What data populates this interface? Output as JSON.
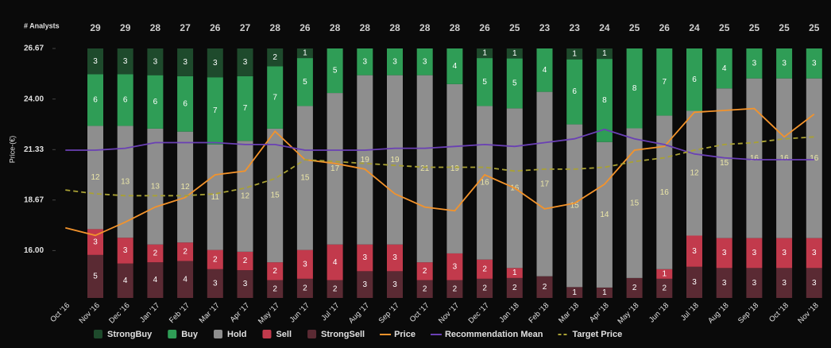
{
  "chart_data": {
    "type": "bar",
    "stack": "percent",
    "analysts_label": "# Analysts",
    "y_label": "Price-(€)",
    "categories": [
      "Oct '16",
      "Nov '16",
      "Dec '16",
      "Jan '17",
      "Feb '17",
      "Mar '17",
      "Apr '17",
      "May '17",
      "Jun '17",
      "Jul '17",
      "Aug '17",
      "Sep '17",
      "Oct '17",
      "Nov '17",
      "Dec '17",
      "Jan '18",
      "Feb '18",
      "Mar '18",
      "Apr '18",
      "May '18",
      "Jun '18",
      "Jul '18",
      "Aug '18",
      "Sep '18",
      "Oct '18",
      "Nov '18"
    ],
    "analysts": [
      null,
      29,
      29,
      28,
      27,
      26,
      27,
      28,
      26,
      28,
      28,
      28,
      28,
      28,
      26,
      25,
      23,
      23,
      24,
      25,
      26,
      24,
      25,
      25,
      25,
      25
    ],
    "ylim": [
      13.5,
      26.67
    ],
    "yticks": [
      {
        "value": 16,
        "label": "16.00"
      },
      18.67,
      21.33,
      {
        "value": 24,
        "label": "24.00"
      },
      26.67
    ],
    "series": [
      {
        "name": "StrongBuy",
        "type": "bar",
        "color": "#1e4a2c",
        "values": [
          null,
          3,
          3,
          3,
          3,
          3,
          3,
          2,
          1,
          0,
          0,
          0,
          0,
          0,
          1,
          1,
          0,
          1,
          1,
          0,
          0,
          0,
          0,
          0,
          0,
          0
        ]
      },
      {
        "name": "Buy",
        "type": "bar",
        "color": "#2f9d56",
        "values": [
          null,
          6,
          6,
          6,
          6,
          7,
          7,
          7,
          5,
          5,
          3,
          3,
          3,
          4,
          5,
          5,
          4,
          6,
          8,
          8,
          7,
          6,
          4,
          3,
          3,
          3
        ]
      },
      {
        "name": "Hold",
        "type": "bar",
        "color": "#8e8e8e",
        "values": [
          null,
          12,
          13,
          13,
          12,
          11,
          12,
          15,
          15,
          17,
          19,
          19,
          21,
          19,
          16,
          16,
          17,
          15,
          14,
          15,
          16,
          12,
          15,
          16,
          16,
          16
        ]
      },
      {
        "name": "Sell",
        "type": "bar",
        "color": "#c23a4c",
        "values": [
          null,
          3,
          3,
          2,
          2,
          2,
          2,
          2,
          3,
          4,
          3,
          3,
          2,
          3,
          2,
          1,
          0,
          0,
          0,
          0,
          1,
          3,
          3,
          3,
          3,
          3
        ]
      },
      {
        "name": "StrongSell",
        "type": "bar",
        "color": "#5a2a33",
        "values": [
          null,
          5,
          4,
          4,
          4,
          3,
          3,
          2,
          2,
          2,
          3,
          3,
          2,
          2,
          2,
          2,
          2,
          1,
          1,
          2,
          2,
          3,
          3,
          3,
          3,
          3
        ]
      },
      {
        "name": "Price",
        "type": "line",
        "color": "#f2932c",
        "values": [
          17.2,
          16.8,
          17.5,
          18.3,
          18.8,
          20.0,
          20.2,
          22.3,
          20.8,
          20.6,
          20.3,
          19.0,
          18.3,
          18.1,
          20.0,
          19.3,
          18.2,
          18.5,
          19.5,
          21.3,
          21.5,
          23.3,
          23.4,
          23.5,
          22.0,
          23.2
        ]
      },
      {
        "name": "Recommendation Mean",
        "type": "line",
        "color": "#6a40b4",
        "values": [
          21.3,
          21.3,
          21.4,
          21.7,
          21.7,
          21.7,
          21.6,
          21.6,
          21.3,
          21.3,
          21.3,
          21.4,
          21.4,
          21.5,
          21.6,
          21.5,
          21.7,
          21.9,
          22.4,
          21.9,
          21.6,
          21.1,
          20.9,
          20.8,
          20.8,
          20.8
        ]
      },
      {
        "name": "Target Price",
        "type": "line",
        "dashed": true,
        "color": "#a9a134",
        "values": [
          19.2,
          19.0,
          18.9,
          18.9,
          18.9,
          19.0,
          19.3,
          19.8,
          20.8,
          20.7,
          20.6,
          20.5,
          20.4,
          20.4,
          20.4,
          20.2,
          20.3,
          20.3,
          20.4,
          20.7,
          20.9,
          21.3,
          21.6,
          21.7,
          21.9,
          22.0
        ]
      }
    ]
  }
}
